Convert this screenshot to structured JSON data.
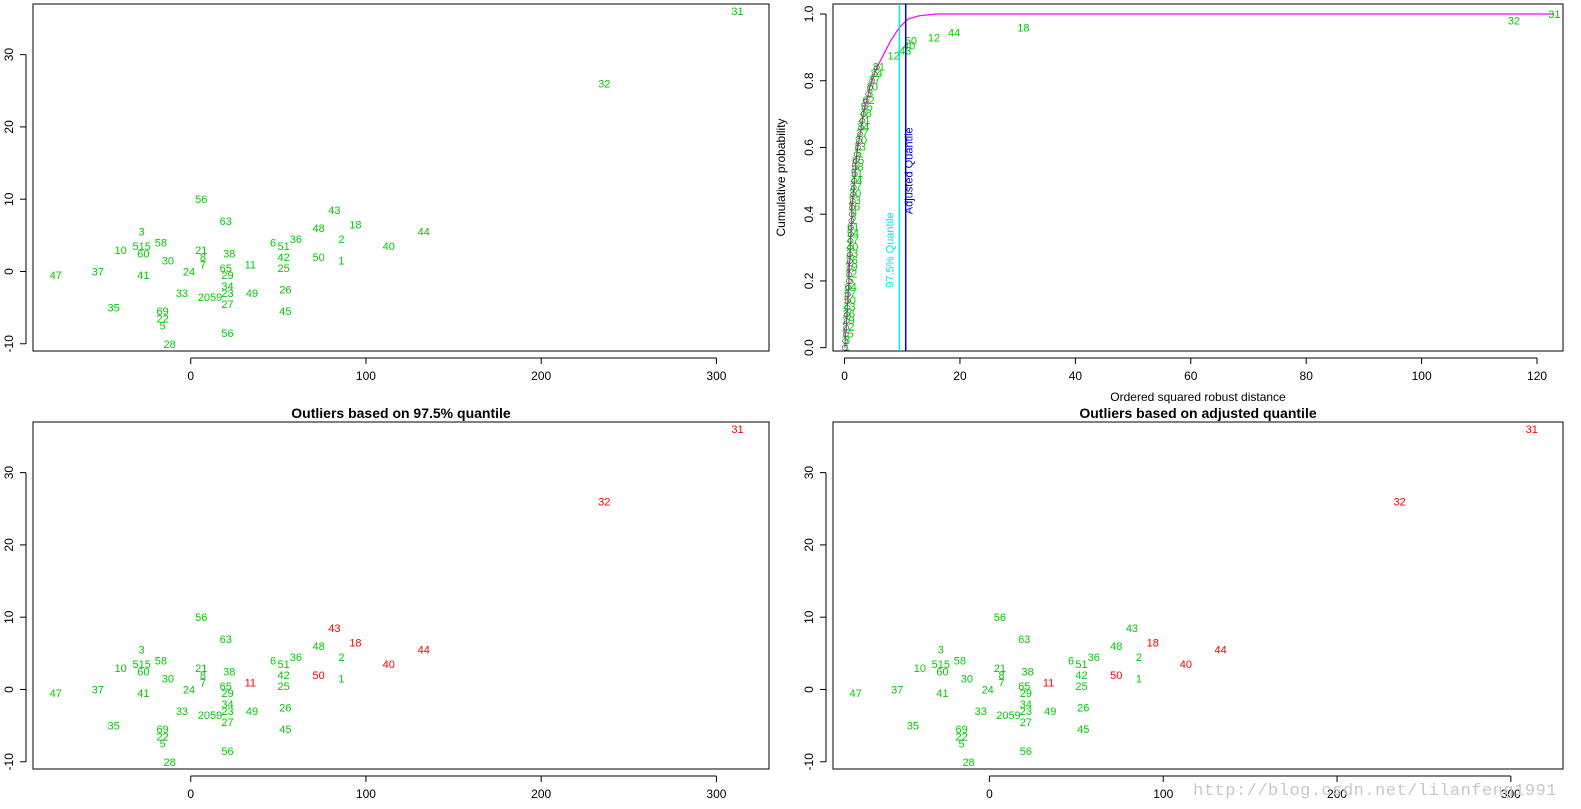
{
  "watermark": "http://blog.csdn.net/lilanfeng1991",
  "chart_data": [
    {
      "type": "scatter",
      "title": "",
      "xlabel": "",
      "ylabel": "",
      "xlim": [
        -90,
        330
      ],
      "ylim": [
        -11,
        37
      ],
      "xticks": [
        0,
        100,
        200,
        300
      ],
      "yticks": [
        -10,
        0,
        10,
        20,
        30
      ],
      "colors": {
        "normal": "#00cc00",
        "outlier": "#ff0000"
      },
      "outliers": []
    },
    {
      "type": "line",
      "title": "",
      "xlabel": "Ordered squared robust distance",
      "ylabel": "Cumulative probability",
      "xlim": [
        -2,
        124.5
      ],
      "ylim": [
        -0.01,
        1.03
      ],
      "xticks": [
        0,
        20,
        40,
        60,
        80,
        100,
        120
      ],
      "yticks": [
        0.0,
        0.2,
        0.4,
        0.6,
        0.8,
        1.0
      ],
      "curve_color": "#ff00ff",
      "vlines": [
        {
          "x": 9.5,
          "label": "97.5% Quantile",
          "color": "#00e5ee"
        },
        {
          "x": 10.6,
          "label": "Adjusted Quantile",
          "color": "#0000cc"
        }
      ],
      "labeled_points": [
        {
          "label": "31",
          "x": 123,
          "y": 1.0
        },
        {
          "label": "32",
          "x": 116,
          "y": 0.98
        },
        {
          "label": "18",
          "x": 31,
          "y": 0.96
        },
        {
          "label": "44",
          "x": 19,
          "y": 0.945
        },
        {
          "label": "12",
          "x": 15.5,
          "y": 0.93
        },
        {
          "label": "50",
          "x": 11.5,
          "y": 0.92
        },
        {
          "label": "40",
          "x": 11.2,
          "y": 0.905
        },
        {
          "label": "43",
          "x": 10.5,
          "y": 0.89
        },
        {
          "label": "12",
          "x": 8.5,
          "y": 0.875
        }
      ]
    },
    {
      "type": "scatter",
      "title": "Outliers based on 97.5% quantile",
      "xlabel": "",
      "ylabel": "",
      "xlim": [
        -90,
        330
      ],
      "ylim": [
        -11,
        37
      ],
      "xticks": [
        0,
        100,
        200,
        300
      ],
      "yticks": [
        -10,
        0,
        10,
        20,
        30
      ],
      "colors": {
        "normal": "#00cc00",
        "outlier": "#ff0000"
      },
      "outliers": [
        "31",
        "32",
        "43",
        "18",
        "44",
        "40",
        "50",
        "11"
      ]
    },
    {
      "type": "scatter",
      "title": "Outliers based on adjusted quantile",
      "xlabel": "",
      "ylabel": "",
      "xlim": [
        -90,
        330
      ],
      "ylim": [
        -11,
        37
      ],
      "xticks": [
        0,
        100,
        200,
        300
      ],
      "yticks": [
        -10,
        0,
        10,
        20,
        30
      ],
      "colors": {
        "normal": "#00cc00",
        "outlier": "#ff0000"
      },
      "outliers": [
        "31",
        "32",
        "18",
        "44",
        "40",
        "50",
        "11"
      ]
    }
  ],
  "scatter_points": [
    {
      "label": "31",
      "x": 312,
      "y": 36
    },
    {
      "label": "32",
      "x": 236,
      "y": 26
    },
    {
      "label": "56",
      "x": 6,
      "y": 10
    },
    {
      "label": "63",
      "x": 20,
      "y": 7
    },
    {
      "label": "43",
      "x": 82,
      "y": 8.5
    },
    {
      "label": "18",
      "x": 94,
      "y": 6.5
    },
    {
      "label": "48",
      "x": 73,
      "y": 6
    },
    {
      "label": "44",
      "x": 133,
      "y": 5.5
    },
    {
      "label": "3",
      "x": -28,
      "y": 5.5
    },
    {
      "label": "2",
      "x": 86,
      "y": 4.5
    },
    {
      "label": "36",
      "x": 60,
      "y": 4.5
    },
    {
      "label": "6",
      "x": 47,
      "y": 4
    },
    {
      "label": "51",
      "x": 53,
      "y": 3.5
    },
    {
      "label": "40",
      "x": 113,
      "y": 3.5
    },
    {
      "label": "58",
      "x": -17,
      "y": 4
    },
    {
      "label": "10",
      "x": -40,
      "y": 3
    },
    {
      "label": "515",
      "x": -28,
      "y": 3.5
    },
    {
      "label": "60",
      "x": -27,
      "y": 2.5
    },
    {
      "label": "21",
      "x": 6,
      "y": 3
    },
    {
      "label": "38",
      "x": 22,
      "y": 2.5
    },
    {
      "label": "8",
      "x": 7,
      "y": 2
    },
    {
      "label": "42",
      "x": 53,
      "y": 2
    },
    {
      "label": "50",
      "x": 73,
      "y": 2
    },
    {
      "label": "30",
      "x": -13,
      "y": 1.5
    },
    {
      "label": "1",
      "x": 86,
      "y": 1.5
    },
    {
      "label": "7",
      "x": 7,
      "y": 1
    },
    {
      "label": "11",
      "x": 34,
      "y": 1
    },
    {
      "label": "65",
      "x": 20,
      "y": 0.5
    },
    {
      "label": "25",
      "x": 53,
      "y": 0.5
    },
    {
      "label": "37",
      "x": -53,
      "y": 0
    },
    {
      "label": "24",
      "x": -1,
      "y": 0
    },
    {
      "label": "41",
      "x": -27,
      "y": -0.5
    },
    {
      "label": "29",
      "x": 21,
      "y": -0.5
    },
    {
      "label": "47",
      "x": -77,
      "y": -0.5
    },
    {
      "label": "34",
      "x": 21,
      "y": -2
    },
    {
      "label": "26",
      "x": 54,
      "y": -2.5
    },
    {
      "label": "33",
      "x": -5,
      "y": -3
    },
    {
      "label": "49",
      "x": 35,
      "y": -3
    },
    {
      "label": "2059",
      "x": 11,
      "y": -3.5
    },
    {
      "label": "23",
      "x": 21,
      "y": -3
    },
    {
      "label": "27",
      "x": 21,
      "y": -4.5
    },
    {
      "label": "35",
      "x": -44,
      "y": -5
    },
    {
      "label": "45",
      "x": 54,
      "y": -5.5
    },
    {
      "label": "69",
      "x": -16,
      "y": -5.5
    },
    {
      "label": "22",
      "x": -16,
      "y": -6.5
    },
    {
      "label": "5",
      "x": -16,
      "y": -7.5
    },
    {
      "label": "56",
      "x": 21,
      "y": -8.5
    },
    {
      "label": "28",
      "x": -12,
      "y": -10
    }
  ],
  "cdf_points": [
    [
      0.05,
      0.0
    ],
    [
      0.1,
      0.02
    ],
    [
      0.2,
      0.04
    ],
    [
      0.3,
      0.06
    ],
    [
      0.35,
      0.08
    ],
    [
      0.4,
      0.1
    ],
    [
      0.5,
      0.12
    ],
    [
      0.55,
      0.14
    ],
    [
      0.6,
      0.16
    ],
    [
      0.7,
      0.18
    ],
    [
      0.75,
      0.2
    ],
    [
      0.8,
      0.22
    ],
    [
      0.85,
      0.24
    ],
    [
      0.9,
      0.26
    ],
    [
      0.95,
      0.28
    ],
    [
      1.0,
      0.3
    ],
    [
      1.05,
      0.32
    ],
    [
      1.1,
      0.34
    ],
    [
      1.15,
      0.36
    ],
    [
      1.2,
      0.38
    ],
    [
      1.25,
      0.4
    ],
    [
      1.3,
      0.42
    ],
    [
      1.4,
      0.44
    ],
    [
      1.5,
      0.46
    ],
    [
      1.6,
      0.48
    ],
    [
      1.7,
      0.5
    ],
    [
      1.8,
      0.52
    ],
    [
      1.9,
      0.54
    ],
    [
      2.0,
      0.56
    ],
    [
      2.1,
      0.58
    ],
    [
      2.3,
      0.6
    ],
    [
      2.5,
      0.62
    ],
    [
      2.7,
      0.64
    ],
    [
      2.9,
      0.66
    ],
    [
      3.1,
      0.68
    ],
    [
      3.3,
      0.7
    ],
    [
      3.5,
      0.72
    ],
    [
      3.8,
      0.74
    ],
    [
      4.1,
      0.76
    ],
    [
      4.4,
      0.78
    ],
    [
      4.8,
      0.8
    ],
    [
      5.2,
      0.82
    ],
    [
      5.6,
      0.84
    ]
  ]
}
